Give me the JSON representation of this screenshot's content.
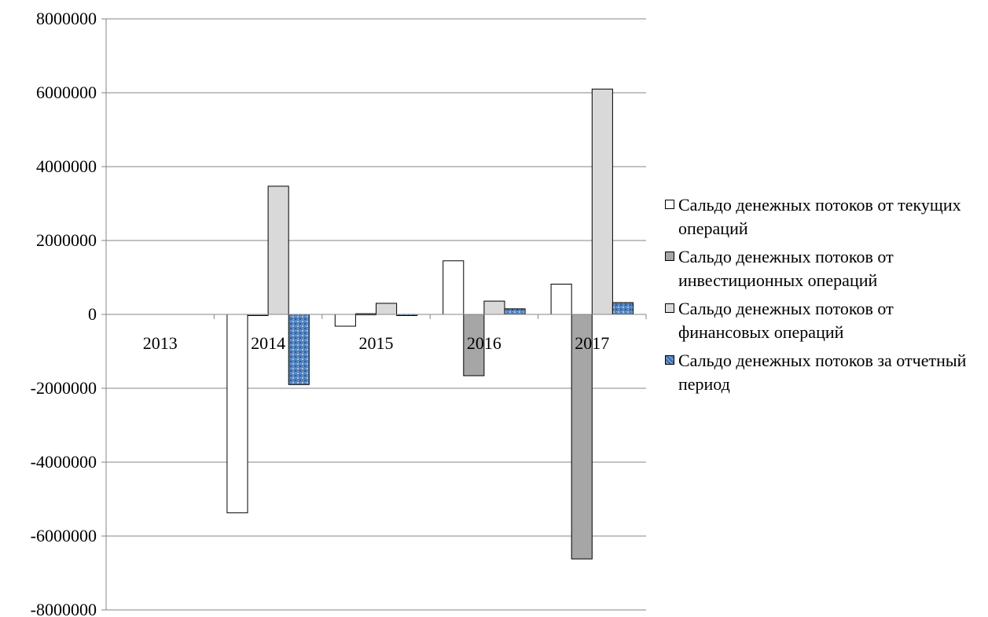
{
  "chart_data": {
    "type": "bar",
    "categories": [
      "2013",
      "2014",
      "2015",
      "2016",
      "2017"
    ],
    "ylim": [
      -8000000,
      8000000
    ],
    "yticks": [
      8000000,
      6000000,
      4000000,
      2000000,
      0,
      -2000000,
      -4000000,
      -6000000,
      -8000000
    ],
    "grid": true,
    "legend_position": "right",
    "series": [
      {
        "name": "Сальдо денежных потоков от текущих операций",
        "color": "#ffffff",
        "values": [
          0,
          -5370000,
          -320000,
          1450000,
          820000
        ]
      },
      {
        "name": "Сальдо денежных потоков от инвестиционных операций",
        "color": "#a6a6a6",
        "values": [
          0,
          -10000,
          20000,
          -1660000,
          -6620000
        ]
      },
      {
        "name": "Сальдо денежных потоков от финансовых операций",
        "color": "#d9d9d9",
        "values": [
          0,
          3470000,
          300000,
          360000,
          6100000
        ]
      },
      {
        "name": "Сальдо денежных потоков за отчетный период",
        "color": "#4f81bd",
        "pattern": "speckled",
        "values": [
          0,
          -1900000,
          -20000,
          150000,
          320000
        ]
      }
    ]
  }
}
